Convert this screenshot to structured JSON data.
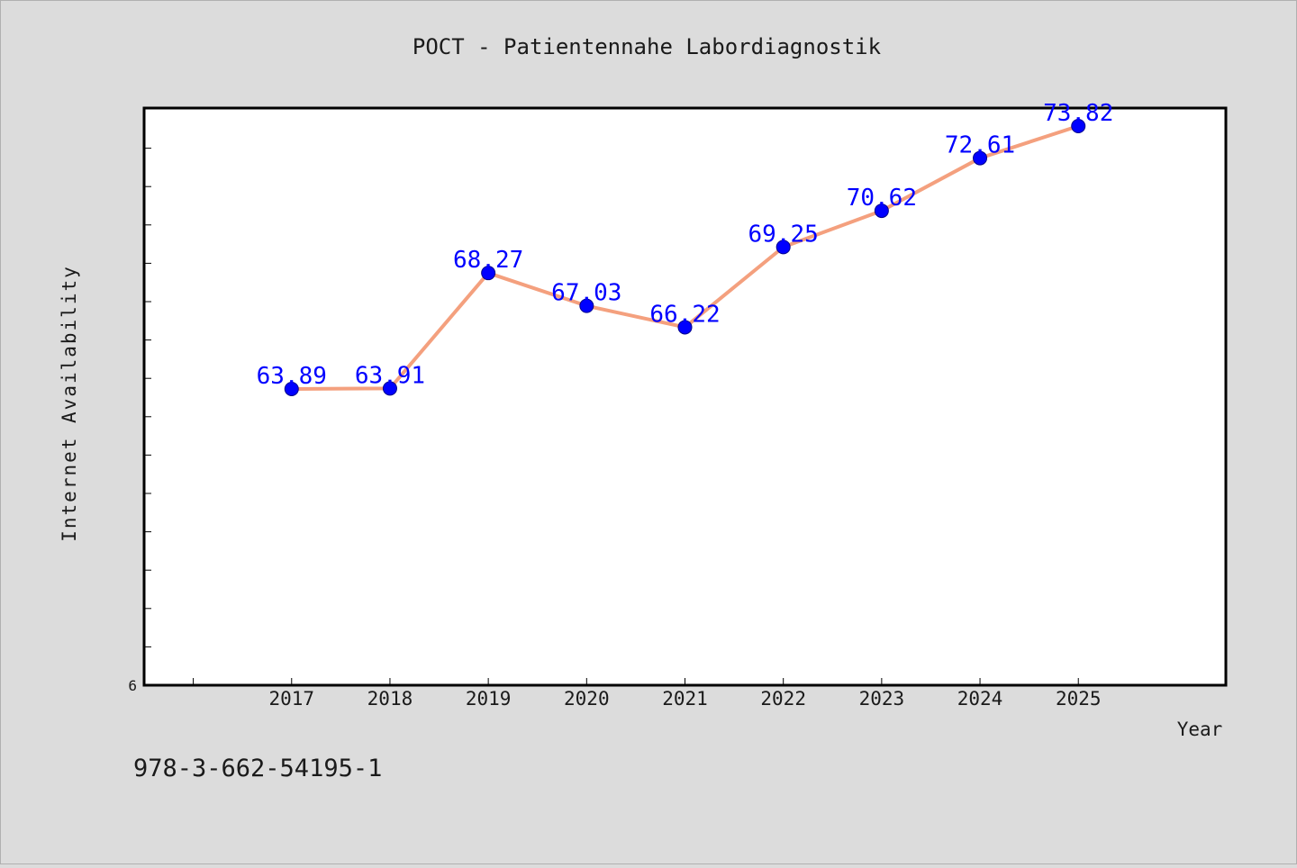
{
  "chart_data": {
    "type": "line",
    "title": "POCT - Patientennahe Labordiagnostik",
    "xlabel": "Year",
    "ylabel": "Internet Availability",
    "x": [
      "2017",
      "2018",
      "2019",
      "2020",
      "2021",
      "2022",
      "2023",
      "2024",
      "2025"
    ],
    "series": [
      {
        "values": [
          63.89,
          63.91,
          68.27,
          67.03,
          66.22,
          69.25,
          70.62,
          72.61,
          73.82
        ],
        "data_labels": [
          "63.89",
          "63.91",
          "68.27",
          "67.03",
          "66.22",
          "69.25",
          "70.62",
          "72.61",
          "73.82"
        ]
      }
    ],
    "y_tick_labels": [
      "6"
    ],
    "ylim": [
      52.7,
      74.5
    ],
    "xlim_categories_padding": 1.5,
    "grid": false,
    "legend": "none",
    "colors": {
      "background": "#dcdcdc",
      "plot_area": "#ffffff",
      "line": "#f4a07e",
      "marker": "#0000ff",
      "data_label": "#0000ff",
      "text": "#1a1a1a"
    }
  },
  "footer": {
    "code": "978-3-662-54195-1"
  }
}
